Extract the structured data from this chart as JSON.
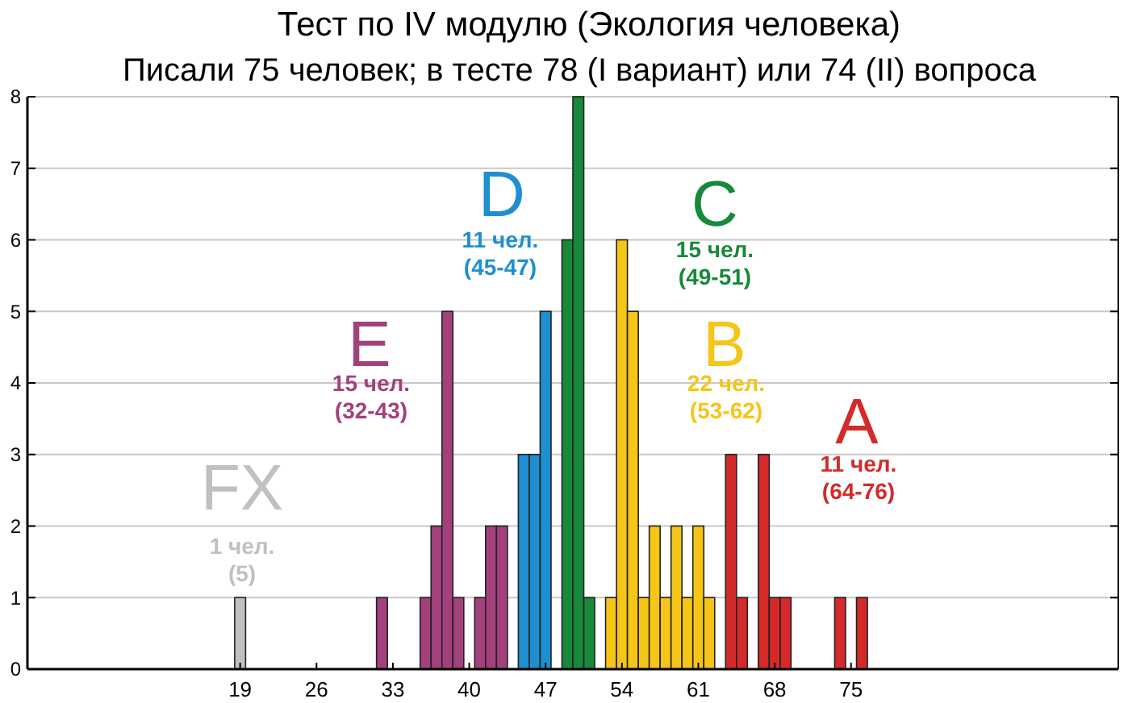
{
  "chart_data": {
    "type": "bar",
    "title": "Тест по IV модулю (Экология человека)",
    "subtitle": "Писали 75 человек; в тесте 78   (I вариант) или 74 (II) вопроса",
    "x": [
      19,
      32,
      36,
      37,
      38,
      39,
      41,
      42,
      43,
      45,
      46,
      47,
      49,
      50,
      51,
      53,
      54,
      55,
      56,
      57,
      58,
      59,
      60,
      61,
      62,
      64,
      65,
      67,
      68,
      69,
      74,
      76
    ],
    "values": [
      1,
      1,
      1,
      2,
      5,
      1,
      1,
      2,
      2,
      3,
      3,
      5,
      6,
      8,
      1,
      1,
      6,
      5,
      1,
      2,
      1,
      2,
      1,
      2,
      1,
      3,
      1,
      3,
      1,
      1,
      1,
      1
    ],
    "colors": [
      "#c0c0c0",
      "#a3417c",
      "#a3417c",
      "#a3417c",
      "#a3417c",
      "#a3417c",
      "#a3417c",
      "#a3417c",
      "#a3417c",
      "#1f8fd0",
      "#1f8fd0",
      "#1f8fd0",
      "#17893a",
      "#17893a",
      "#17893a",
      "#f5c518",
      "#f5c518",
      "#f5c518",
      "#f5c518",
      "#f5c518",
      "#f5c518",
      "#f5c518",
      "#f5c518",
      "#f5c518",
      "#f5c518",
      "#d42a2a",
      "#d42a2a",
      "#d42a2a",
      "#d42a2a",
      "#d42a2a",
      "#d42a2a",
      "#d42a2a"
    ],
    "xlim": [
      -0.5,
      99.5
    ],
    "xticks": [
      19,
      26,
      33,
      40,
      47,
      54,
      61,
      68,
      75
    ],
    "ylim": [
      0,
      8
    ],
    "yticks": [
      0,
      1,
      2,
      3,
      4,
      5,
      6,
      7,
      8
    ],
    "grid": "y",
    "annotations": [
      "FX",
      "1 чел.\n(5)",
      "E",
      "15 чел.\n(32-43)",
      "D",
      "11 чел.\n(45-47)",
      "C",
      "15 чел.\n(49-51)",
      "B",
      "22 чел.\n(53-62)",
      "A",
      "11 чел.\n(64-76)"
    ]
  }
}
